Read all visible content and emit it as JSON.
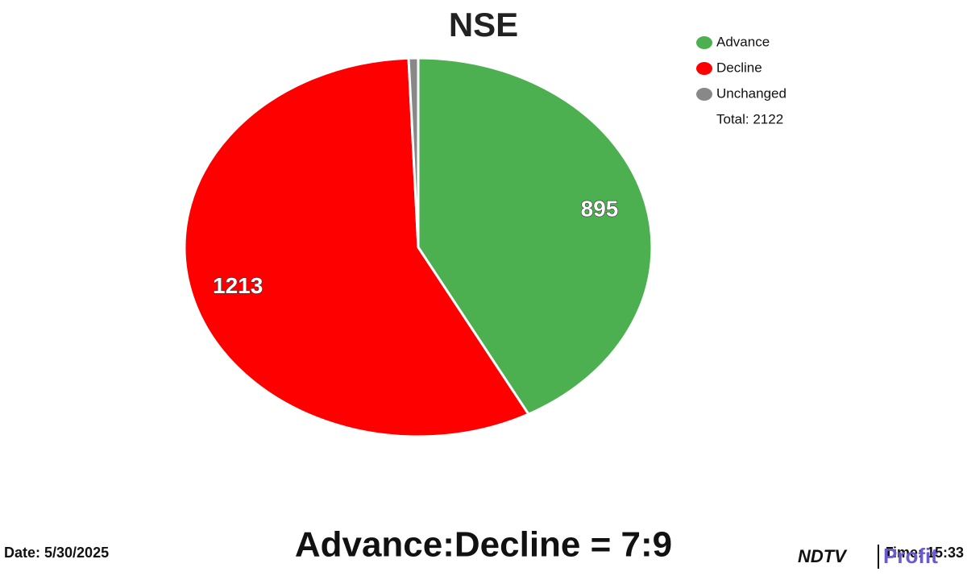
{
  "chart_data": {
    "type": "pie",
    "title": "NSE",
    "categories": [
      "Advance",
      "Decline",
      "Unchanged"
    ],
    "values": [
      895,
      1213,
      14
    ],
    "colors": [
      "#4caf50",
      "#ff0000",
      "#888888"
    ],
    "total_label": "Total: 2122",
    "legend": "top-right"
  },
  "footer": {
    "date": "Date: 5/30/2025",
    "ratio": "Advance:Decline = 7:9",
    "time": "Time: 15:33",
    "logo_left": "NDTV",
    "logo_right": "Profit"
  }
}
